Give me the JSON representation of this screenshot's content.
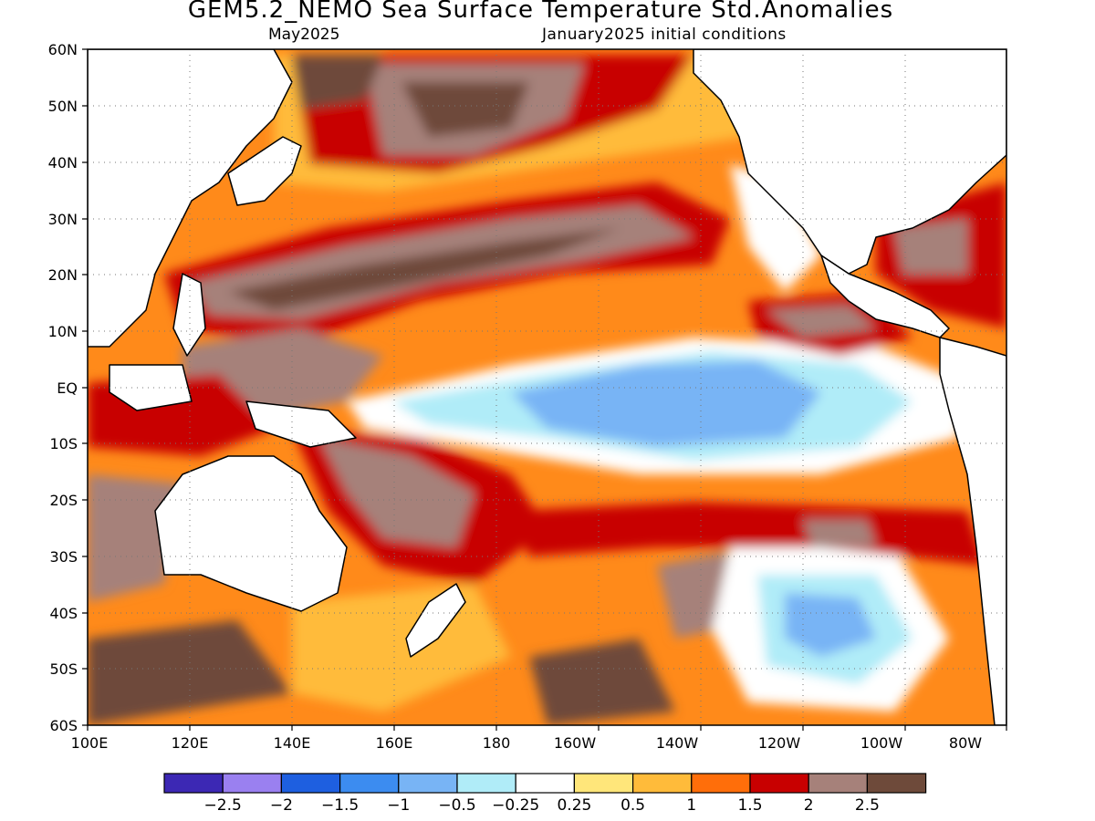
{
  "title": "GEM5.2_NEMO Sea Surface Temperature Std.Anomalies",
  "subtitle_left": "May2025",
  "subtitle_right": "January2025 initial conditions",
  "lat_labels": [
    "60N",
    "50N",
    "40N",
    "30N",
    "20N",
    "10N",
    "EQ",
    "10S",
    "20S",
    "30S",
    "40S",
    "50S",
    "60S"
  ],
  "lon_labels": [
    "100E",
    "120E",
    "140E",
    "160E",
    "180",
    "160W",
    "140W",
    "120W",
    "100W",
    "80W"
  ],
  "colorbar": {
    "colors": [
      "#3c28b4",
      "#9a80f0",
      "#1e5fe0",
      "#3c8cf0",
      "#78b4f5",
      "#b0ecf8",
      "#ffffff",
      "#ffe67a",
      "#ffbb3a",
      "#ff6e0a",
      "#c80000",
      "#a6817a",
      "#6e4a3a"
    ],
    "labels": [
      "−2.5",
      "−2",
      "−1.5",
      "−1",
      "−0.5",
      "−0.25",
      "0.25",
      "0.5",
      "1",
      "1.5",
      "2",
      "2.5"
    ]
  }
}
